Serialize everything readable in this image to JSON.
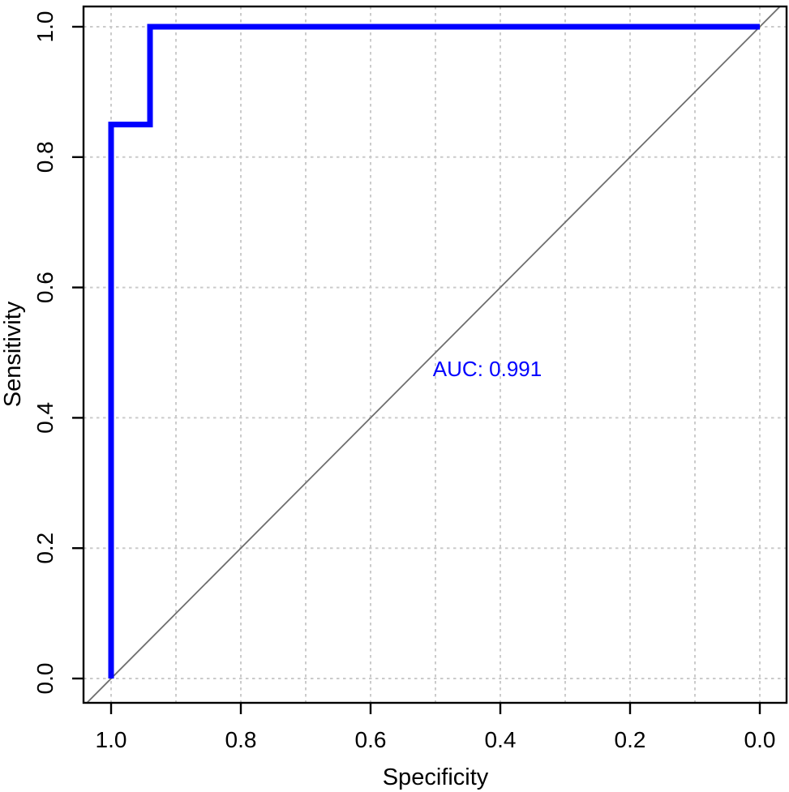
{
  "figure": {
    "kind": "ROC curve plot",
    "background_color": "#FFFFFF"
  },
  "chart_data": {
    "type": "line",
    "subtype": "roc-curve",
    "title": "",
    "xlabel": "Specificity",
    "ylabel": "Sensitivity",
    "x_axis": {
      "label": "Specificity",
      "min": 0.0,
      "max": 1.0,
      "reversed": true,
      "tick_values": [
        1.0,
        0.8,
        0.6,
        0.4,
        0.2,
        0.0
      ],
      "tick_labels": [
        "1.0",
        "0.8",
        "0.6",
        "0.4",
        "0.2",
        "0.0"
      ]
    },
    "y_axis": {
      "label": "Sensitivity",
      "min": 0.0,
      "max": 1.0,
      "tick_values": [
        0.0,
        0.2,
        0.4,
        0.6,
        0.8,
        1.0
      ],
      "tick_labels": [
        "0.0",
        "0.2",
        "0.4",
        "0.6",
        "0.8",
        "1.0"
      ],
      "tick_label_rotation_deg": -90
    },
    "grid": {
      "visible": true,
      "style": "dashed",
      "color": "#CBCBCB",
      "vertical_step": 0.1,
      "horizontal_step": 0.2
    },
    "series": [
      {
        "name": "ROC curve",
        "color": "#0000FF",
        "points_specificity_sensitivity": [
          [
            1.0,
            0.0
          ],
          [
            1.0,
            0.85
          ],
          [
            0.94,
            0.85
          ],
          [
            0.94,
            1.0
          ],
          [
            0.0,
            1.0
          ]
        ]
      }
    ],
    "reference_diagonal": {
      "visible": true,
      "color": "#6E6E6E",
      "from_specificity_sensitivity": [
        1.0,
        0.0
      ],
      "to_specificity_sensitivity": [
        0.0,
        1.0
      ]
    },
    "annotation": {
      "text": "AUC: 0.991",
      "value": 0.991,
      "color": "#0000FF",
      "at_specificity": 0.42,
      "at_sensitivity": 0.475
    },
    "axis_color": "#000000",
    "tick_label_color": "#000000"
  }
}
